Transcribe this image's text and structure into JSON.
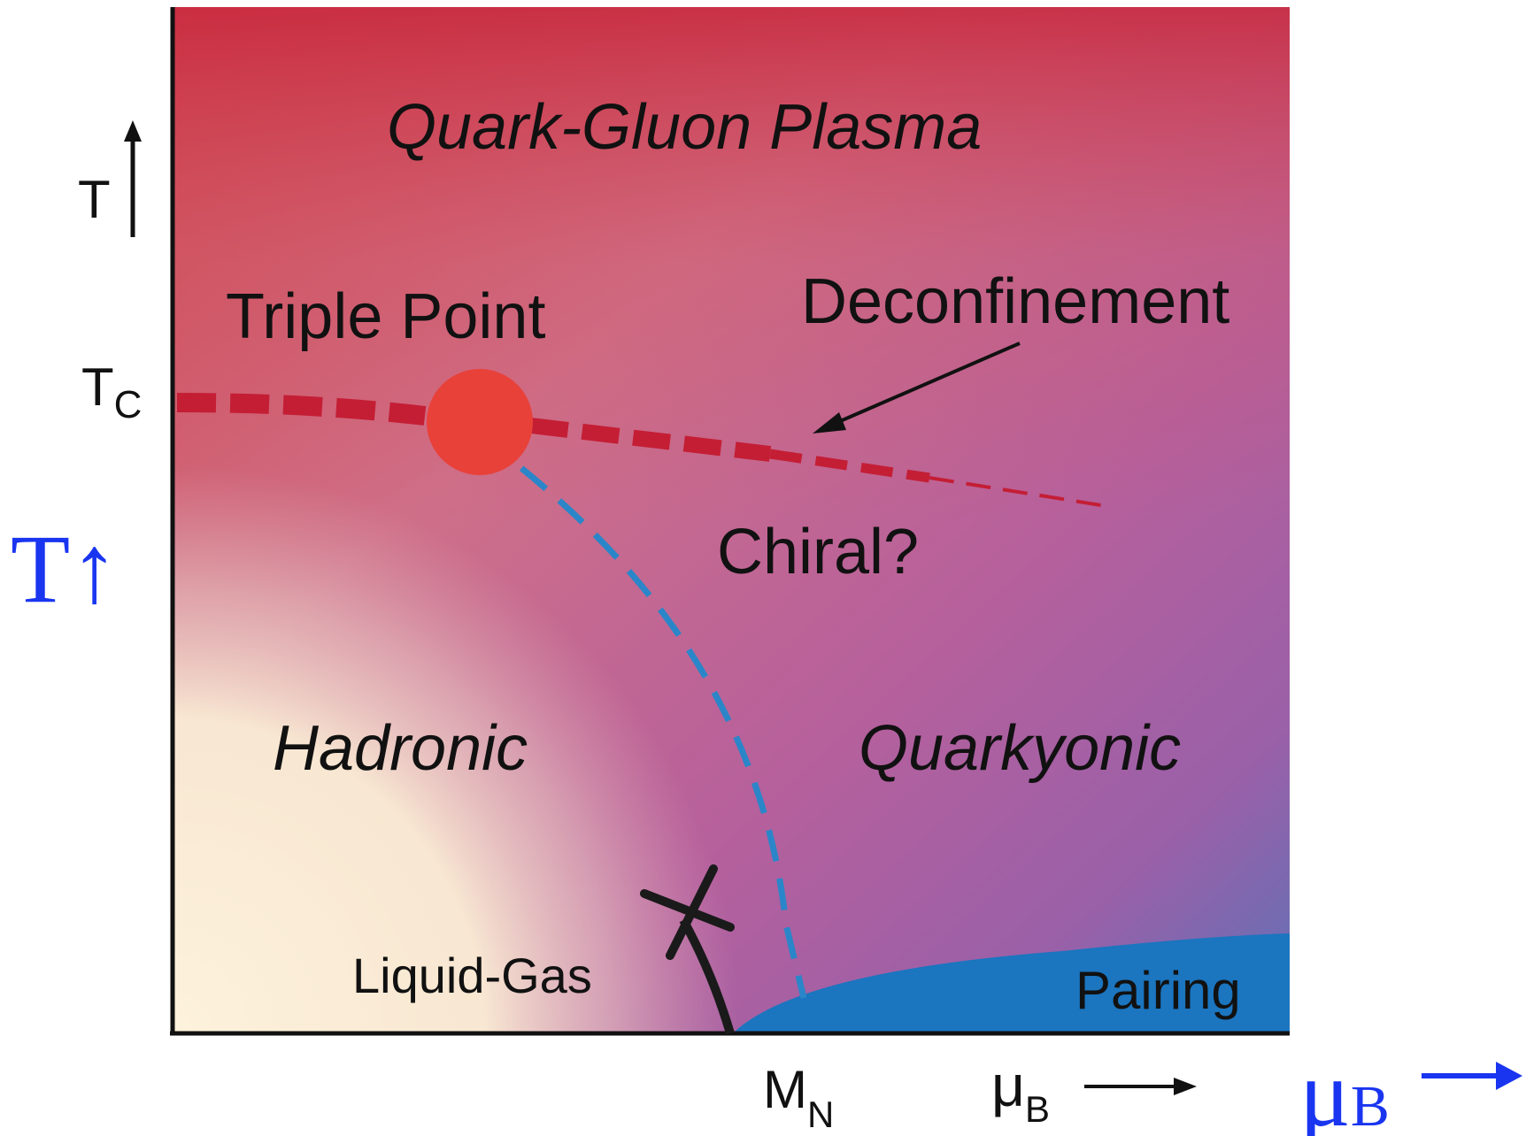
{
  "regions": {
    "qgp": "Quark-Gluon Plasma",
    "hadronic": "Hadronic",
    "quarkyonic": "Quarkyonic",
    "pairing": "Pairing"
  },
  "annotations": {
    "triple_point": "Triple Point",
    "deconfinement": "Deconfinement",
    "chiral": "Chiral?",
    "liquid_gas": "Liquid-Gas"
  },
  "axes": {
    "y_label_main": "T",
    "y_label_arrow": "↑",
    "tc_main": "T",
    "tc_sub": "C",
    "x_mass_main": "M",
    "x_mass_sub": "N",
    "x_mu_main": "μ",
    "x_mu_sub": "B",
    "x_arrow": "⟶"
  },
  "overlay": {
    "y_label": "T↑",
    "x_label_main": "μ",
    "x_label_sub": "B",
    "x_label_arrow": "⟶",
    "color": "#1a35f0"
  },
  "colors": {
    "deconfinement_line": "#c41e35",
    "triple_point": "#e8413a",
    "chiral_line": "#2a86c8",
    "pairing": "#1b75bf",
    "liquid_gas_line": "#1a1a1a"
  }
}
